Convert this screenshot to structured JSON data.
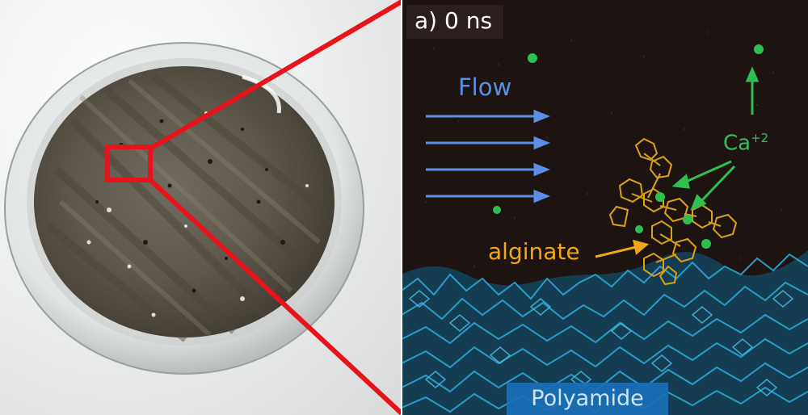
{
  "panel_title": "a) 0 ns",
  "labels": {
    "flow": "Flow",
    "ion_base": "Ca",
    "ion_charge": "+2",
    "alginate": "alginate",
    "polyamide": "Polyamide"
  },
  "colors": {
    "zoom_box": "#e8141b",
    "flow_arrows": "#5b8fe6",
    "calcium": "#33c05a",
    "alginate": "#f0a818",
    "polyamide": "#2aa6d6",
    "sim_background": "#1d1412"
  },
  "icons": [
    "flow-arrow-icon",
    "calcium-ion-icon",
    "pointer-arrow-icon"
  ]
}
